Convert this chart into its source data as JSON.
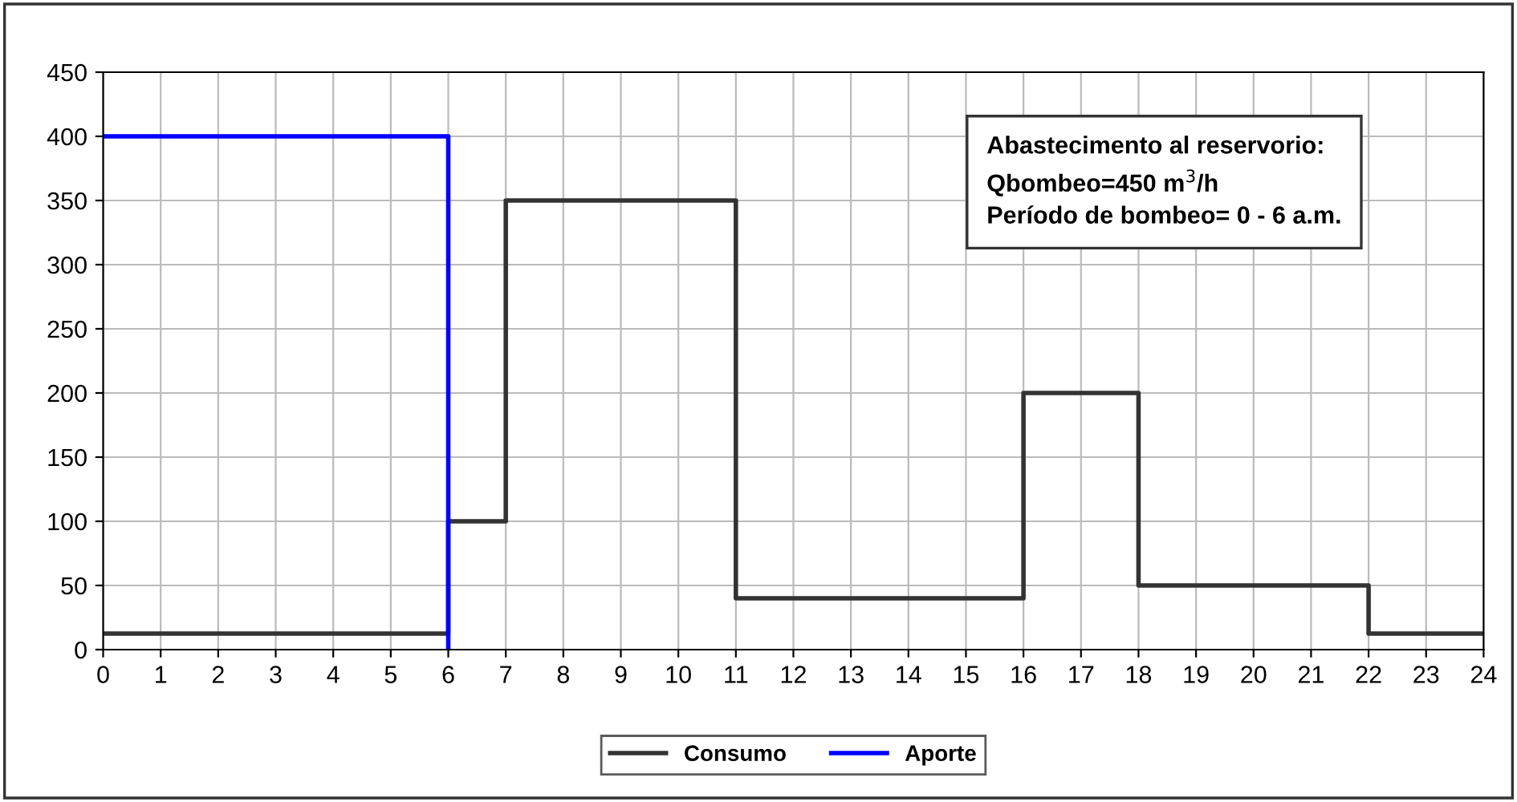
{
  "chart_data": {
    "type": "step",
    "series": [
      {
        "name": "Consumo",
        "color": "#333333",
        "x": [
          0,
          6,
          7,
          11,
          16,
          18,
          22,
          24
        ],
        "values": [
          12.5,
          100,
          350,
          40,
          200,
          50,
          12.5,
          12.5
        ]
      },
      {
        "name": "Aporte",
        "color": "#0000ff",
        "x": [
          0,
          6
        ],
        "values": [
          400,
          0
        ]
      }
    ],
    "xlim": [
      0,
      24
    ],
    "xticks": [
      0,
      1,
      2,
      3,
      4,
      5,
      6,
      7,
      8,
      9,
      10,
      11,
      12,
      13,
      14,
      15,
      16,
      17,
      18,
      19,
      20,
      21,
      22,
      23,
      24
    ],
    "ylim": [
      0,
      450
    ],
    "yticks": [
      0,
      50,
      100,
      150,
      200,
      250,
      300,
      350,
      400,
      450
    ],
    "grid": true,
    "legend": "bottom",
    "line_style": "solid",
    "marker": "none",
    "annotations": [
      "Abastecimento al reservorio:\nQbombeo=450 m$^{3}$/h\nPeríodo de bombeo= 0 - 6 a.m."
    ]
  }
}
